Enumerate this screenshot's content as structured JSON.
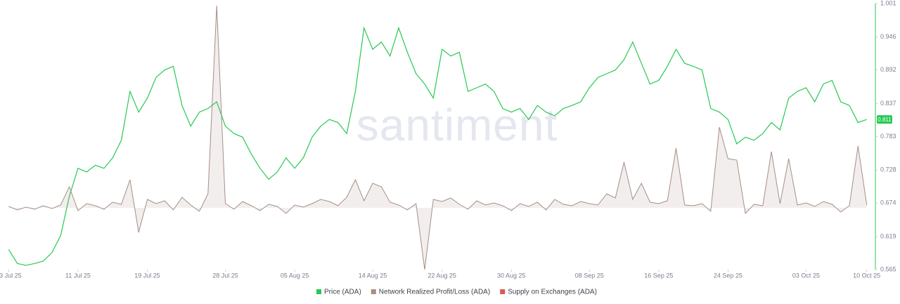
{
  "chart_data": {
    "type": "line",
    "watermark": "santiment",
    "x": [
      "2025-07-03",
      "2025-07-04",
      "2025-07-05",
      "2025-07-06",
      "2025-07-07",
      "2025-07-08",
      "2025-07-09",
      "2025-07-10",
      "2025-07-11",
      "2025-07-12",
      "2025-07-13",
      "2025-07-14",
      "2025-07-15",
      "2025-07-16",
      "2025-07-17",
      "2025-07-18",
      "2025-07-19",
      "2025-07-20",
      "2025-07-21",
      "2025-07-22",
      "2025-07-23",
      "2025-07-24",
      "2025-07-25",
      "2025-07-26",
      "2025-07-27",
      "2025-07-28",
      "2025-07-29",
      "2025-07-30",
      "2025-07-31",
      "2025-08-01",
      "2025-08-02",
      "2025-08-03",
      "2025-08-04",
      "2025-08-05",
      "2025-08-06",
      "2025-08-07",
      "2025-08-08",
      "2025-08-09",
      "2025-08-10",
      "2025-08-11",
      "2025-08-12",
      "2025-08-13",
      "2025-08-14",
      "2025-08-15",
      "2025-08-16",
      "2025-08-17",
      "2025-08-18",
      "2025-08-19",
      "2025-08-20",
      "2025-08-21",
      "2025-08-22",
      "2025-08-23",
      "2025-08-24",
      "2025-08-25",
      "2025-08-26",
      "2025-08-27",
      "2025-08-28",
      "2025-08-29",
      "2025-08-30",
      "2025-08-31",
      "2025-09-01",
      "2025-09-02",
      "2025-09-03",
      "2025-09-04",
      "2025-09-05",
      "2025-09-06",
      "2025-09-07",
      "2025-09-08",
      "2025-09-09",
      "2025-09-10",
      "2025-09-11",
      "2025-09-12",
      "2025-09-13",
      "2025-09-14",
      "2025-09-15",
      "2025-09-16",
      "2025-09-17",
      "2025-09-18",
      "2025-09-19",
      "2025-09-20",
      "2025-09-21",
      "2025-09-22",
      "2025-09-23",
      "2025-09-24",
      "2025-09-25",
      "2025-09-26",
      "2025-09-27",
      "2025-09-28",
      "2025-09-29",
      "2025-09-30",
      "2025-10-01",
      "2025-10-02",
      "2025-10-03",
      "2025-10-04",
      "2025-10-05",
      "2025-10-06",
      "2025-10-07",
      "2025-10-08",
      "2025-10-09",
      "2025-10-10"
    ],
    "xlim": [
      "2025-07-02",
      "2025-10-11"
    ],
    "xticks": [
      {
        "value": "2025-07-03",
        "label": "03 Jul 25"
      },
      {
        "value": "2025-07-11",
        "label": "11 Jul 25"
      },
      {
        "value": "2025-07-19",
        "label": "19 Jul 25"
      },
      {
        "value": "2025-07-28",
        "label": "28 Jul 25"
      },
      {
        "value": "2025-08-05",
        "label": "05 Aug 25"
      },
      {
        "value": "2025-08-14",
        "label": "14 Aug 25"
      },
      {
        "value": "2025-08-22",
        "label": "22 Aug 25"
      },
      {
        "value": "2025-08-30",
        "label": "30 Aug 25"
      },
      {
        "value": "2025-09-08",
        "label": "08 Sep 25"
      },
      {
        "value": "2025-09-16",
        "label": "16 Sep 25"
      },
      {
        "value": "2025-09-24",
        "label": "24 Sep 25"
      },
      {
        "value": "2025-10-03",
        "label": "03 Oct 25"
      },
      {
        "value": "2025-10-10",
        "label": "10 Oct 25"
      }
    ],
    "ylim": [
      0.565,
      1.001
    ],
    "yticks": [
      0.565,
      0.619,
      0.674,
      0.728,
      0.783,
      0.837,
      0.892,
      0.946,
      1.001
    ],
    "y2lim": [
      -88,
      291
    ],
    "price_marker": 0.811,
    "series": [
      {
        "name": "Price (ADA)",
        "color": "#26c953",
        "values": [
          0.598,
          0.575,
          0.572,
          0.575,
          0.579,
          0.593,
          0.621,
          0.685,
          0.731,
          0.725,
          0.736,
          0.731,
          0.748,
          0.777,
          0.857,
          0.823,
          0.846,
          0.88,
          0.892,
          0.898,
          0.834,
          0.8,
          0.823,
          0.829,
          0.84,
          0.8,
          0.788,
          0.782,
          0.754,
          0.731,
          0.713,
          0.725,
          0.748,
          0.731,
          0.748,
          0.782,
          0.8,
          0.811,
          0.806,
          0.788,
          0.857,
          0.961,
          0.926,
          0.938,
          0.915,
          0.961,
          0.921,
          0.886,
          0.869,
          0.846,
          0.926,
          0.915,
          0.921,
          0.857,
          0.863,
          0.869,
          0.857,
          0.829,
          0.823,
          0.829,
          0.811,
          0.834,
          0.823,
          0.817,
          0.829,
          0.834,
          0.84,
          0.863,
          0.88,
          0.886,
          0.892,
          0.909,
          0.938,
          0.903,
          0.869,
          0.875,
          0.898,
          0.926,
          0.903,
          0.898,
          0.892,
          0.829,
          0.823,
          0.811,
          0.771,
          0.782,
          0.777,
          0.788,
          0.806,
          0.794,
          0.846,
          0.857,
          0.863,
          0.84,
          0.869,
          0.875,
          0.84,
          0.834,
          0.806,
          0.811
        ]
      },
      {
        "name": "Network Realized Profit/Loss (ADA)",
        "color": "#a58f87",
        "axis": "y2",
        "values": [
          2,
          -3,
          1,
          -2,
          3,
          -1,
          4,
          30,
          -4,
          6,
          3,
          -2,
          8,
          5,
          40,
          -35,
          12,
          6,
          10,
          -3,
          15,
          4,
          -5,
          20,
          288,
          6,
          -2,
          9,
          3,
          -4,
          5,
          2,
          -8,
          4,
          1,
          6,
          12,
          9,
          3,
          15,
          40,
          10,
          35,
          30,
          8,
          4,
          -3,
          6,
          -88,
          12,
          9,
          14,
          5,
          -2,
          10,
          4,
          7,
          3,
          -4,
          6,
          2,
          8,
          -3,
          12,
          5,
          3,
          9,
          6,
          4,
          20,
          14,
          65,
          12,
          35,
          8,
          6,
          10,
          85,
          4,
          3,
          6,
          -5,
          115,
          70,
          68,
          -8,
          5,
          3,
          80,
          6,
          70,
          4,
          7,
          2,
          9,
          5,
          -6,
          3,
          88,
          4
        ]
      },
      {
        "name": "Supply on Exchanges (ADA)",
        "color": "#e05858"
      }
    ]
  }
}
